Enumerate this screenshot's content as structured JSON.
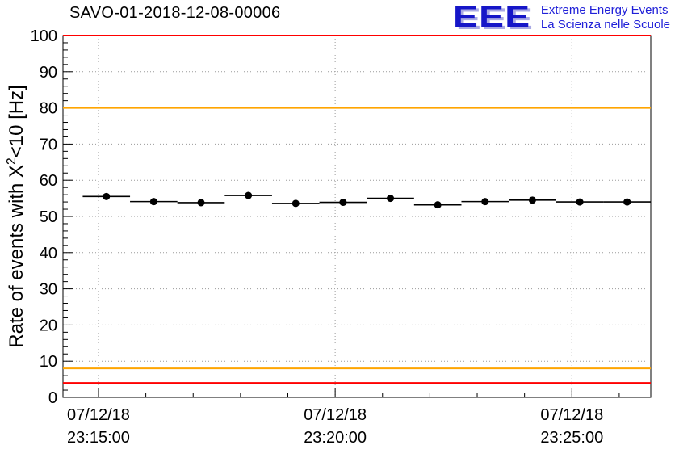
{
  "logo": {
    "letters": "EEE",
    "line1": "Extreme Energy Events",
    "line2": "La Scienza nelle Scuole",
    "color_dark": "#1616c8",
    "color_light": "#a9a9e4"
  },
  "y_axis": {
    "label_prefix": "Rate of events with X",
    "label_sup": "2",
    "label_suffix": "<10 [Hz]"
  },
  "chart_data": {
    "type": "scatter",
    "title": "SAVO-01-2018-12-08-00006",
    "ylabel": "Rate of events with X^2<10 [Hz]",
    "xlabel": "",
    "ylim": [
      0,
      100
    ],
    "y_major_ticks": [
      0,
      10,
      20,
      30,
      40,
      50,
      60,
      70,
      80,
      90,
      100
    ],
    "y_minor_step": 2,
    "x_range_seconds": [
      -45,
      700
    ],
    "x_minor_step_seconds": 60,
    "x_major_ticks": [
      {
        "t": 0,
        "date": "07/12/18",
        "time": "23:15:00"
      },
      {
        "t": 300,
        "date": "07/12/18",
        "time": "23:20:00"
      },
      {
        "t": 600,
        "date": "07/12/18",
        "time": "23:25:00"
      }
    ],
    "grid": "dotted",
    "legend": "none",
    "points": {
      "t_seconds": [
        10,
        70,
        130,
        190,
        250,
        310,
        370,
        430,
        490,
        550,
        610,
        670
      ],
      "rate_hz": [
        55.5,
        54.1,
        53.8,
        55.8,
        53.6,
        53.9,
        55.0,
        53.2,
        54.1,
        54.5,
        54.0,
        54.0
      ],
      "xerr_seconds": 30,
      "yerr_hz": 0.5,
      "marker": "filled-circle",
      "color": "#000000"
    },
    "threshold_lines": [
      {
        "y": 100,
        "color": "#ff0000",
        "name": "red-upper"
      },
      {
        "y": 80,
        "color": "#ffa500",
        "name": "orange-upper"
      },
      {
        "y": 8,
        "color": "#ffa500",
        "name": "orange-lower"
      },
      {
        "y": 4,
        "color": "#ff0000",
        "name": "red-lower"
      }
    ]
  }
}
